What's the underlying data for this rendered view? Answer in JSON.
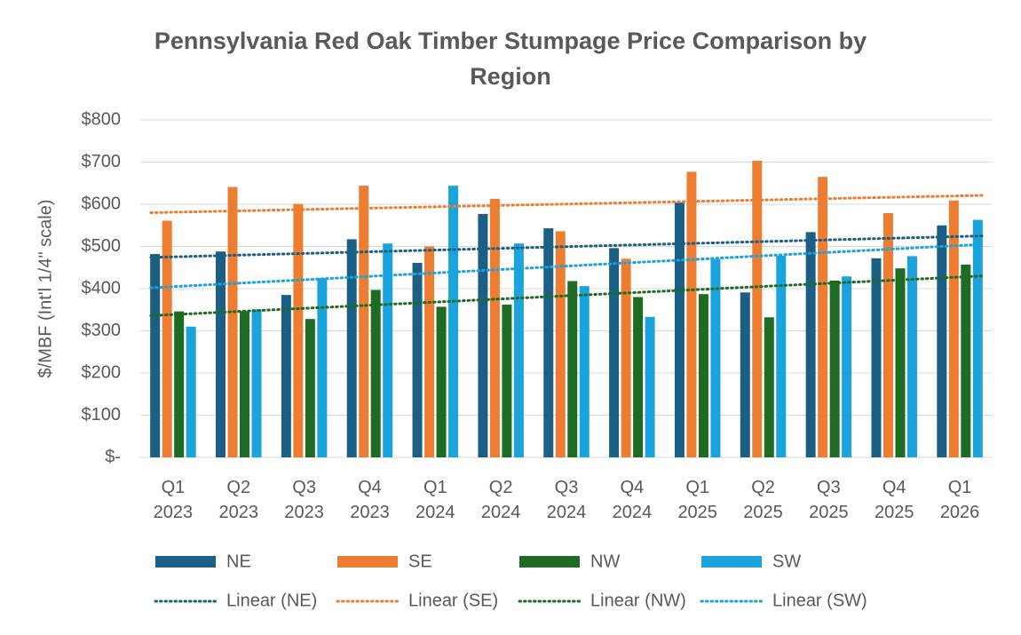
{
  "chart_data": {
    "type": "bar",
    "title": "Pennsylvania Red Oak Timber Stumpage Price Comparison by Region",
    "y_label": "$/MBF (Int'l 1/4\" scale)",
    "categories": [
      "Q1 2023",
      "Q2 2023",
      "Q3 2023",
      "Q4 2023",
      "Q1 2024",
      "Q2 2024",
      "Q3 2024",
      "Q4 2024",
      "Q1 2025",
      "Q2 2025",
      "Q3 2025",
      "Q4 2025",
      "Q1 2026"
    ],
    "series": [
      {
        "name": "NE",
        "color": "#1b5f84",
        "values": [
          482,
          488,
          385,
          517,
          461,
          577,
          543,
          496,
          604,
          391,
          534,
          472,
          550
        ]
      },
      {
        "name": "SE",
        "color": "#ed7d31",
        "values": [
          561,
          641,
          601,
          644,
          500,
          613,
          536,
          471,
          677,
          703,
          665,
          579,
          609
        ]
      },
      {
        "name": "NW",
        "color": "#1e6b24",
        "values": [
          346,
          347,
          328,
          397,
          357,
          362,
          418,
          380,
          387,
          332,
          419,
          448,
          457
        ]
      },
      {
        "name": "SW",
        "color": "#1ba3dc",
        "values": [
          310,
          351,
          425,
          507,
          644,
          507,
          406,
          333,
          470,
          478,
          429,
          477,
          563
        ]
      }
    ],
    "trendlines": [
      {
        "name": "Linear (NE)",
        "color": "#1b5f84",
        "values": [
          474,
          525
        ]
      },
      {
        "name": "Linear (SE)",
        "color": "#ed7d31",
        "values": [
          580,
          621
        ]
      },
      {
        "name": "Linear (NW)",
        "color": "#1e6b24",
        "values": [
          336,
          430
        ]
      },
      {
        "name": "Linear (SW)",
        "color": "#1ba3dc",
        "values": [
          402,
          505
        ]
      }
    ],
    "ylim": [
      0,
      800
    ],
    "yticks": [
      {
        "value": 0,
        "label": "$-"
      },
      {
        "value": 100,
        "label": "$100"
      },
      {
        "value": 200,
        "label": "$200"
      },
      {
        "value": 300,
        "label": "$300"
      },
      {
        "value": 400,
        "label": "$400"
      },
      {
        "value": 500,
        "label": "$500"
      },
      {
        "value": 600,
        "label": "$600"
      },
      {
        "value": 700,
        "label": "$700"
      },
      {
        "value": 800,
        "label": "$800"
      }
    ],
    "grid": true
  }
}
